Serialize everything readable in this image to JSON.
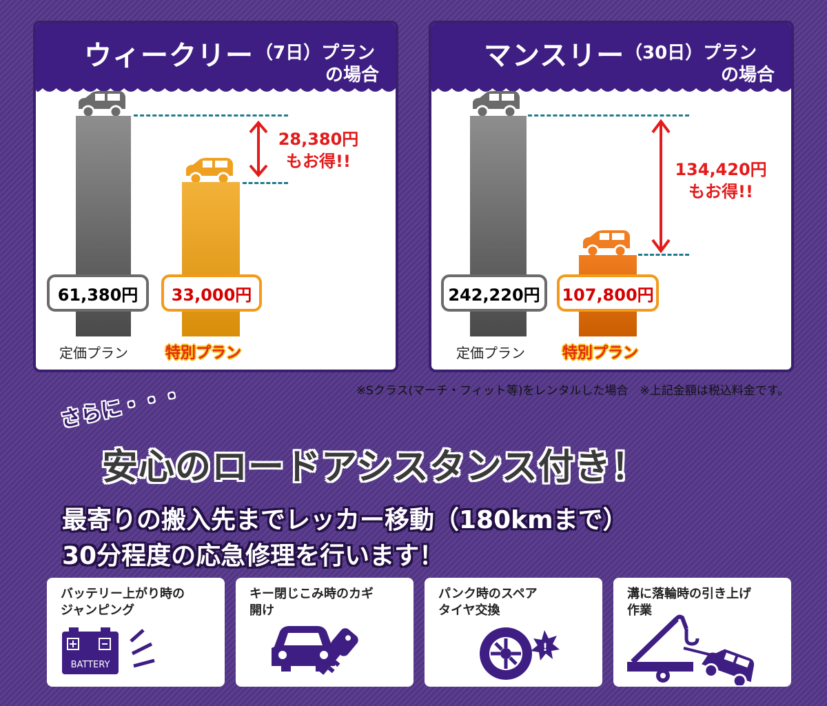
{
  "weekly": {
    "title": "ウィークリー",
    "period": "（7日）プラン",
    "suffix": "の場合",
    "regular_price": "61,380円",
    "special_price": "33,000円",
    "saving_amount": "28,380円",
    "saving_text": "もお得!!",
    "regular_label": "定価プラン",
    "special_label": "特別プラン"
  },
  "monthly": {
    "title": "マンスリー",
    "period": "（30日）プラン",
    "suffix": "の場合",
    "regular_price": "242,220円",
    "special_price": "107,800円",
    "saving_amount": "134,420円",
    "saving_text": "もお得!!",
    "regular_label": "定価プラン",
    "special_label": "特別プラン"
  },
  "note": "※Sクラス(マーチ・フィット等)をレンタルした場合　※上記金額は税込料金です。",
  "sarani": "さらに・・・",
  "headline": "安心のロードアシスタンス付き！",
  "line1": "最寄りの搬入先までレッカー移動（180kmまで）",
  "line2": "30分程度の応急修理を行います！",
  "cards": [
    {
      "line1": "バッテリー上がり時の",
      "line2": "ジャンピング",
      "icon_label": "BATTERY",
      "icon": "battery-icon"
    },
    {
      "line1": "キー閉じこみ時のカギ",
      "line2": "開け",
      "icon": "car-key-icon"
    },
    {
      "line1": "パンク時のスペア",
      "line2": "タイヤ交換",
      "icon": "tire-icon"
    },
    {
      "line1": "溝に落輪時の引き上げ",
      "line2": "作業",
      "icon": "tow-truck-icon"
    }
  ],
  "colors": {
    "purple": "#3f1e83",
    "orange": "#f39a1a",
    "red": "#e31b1b",
    "teal": "#1f7a8c"
  }
}
